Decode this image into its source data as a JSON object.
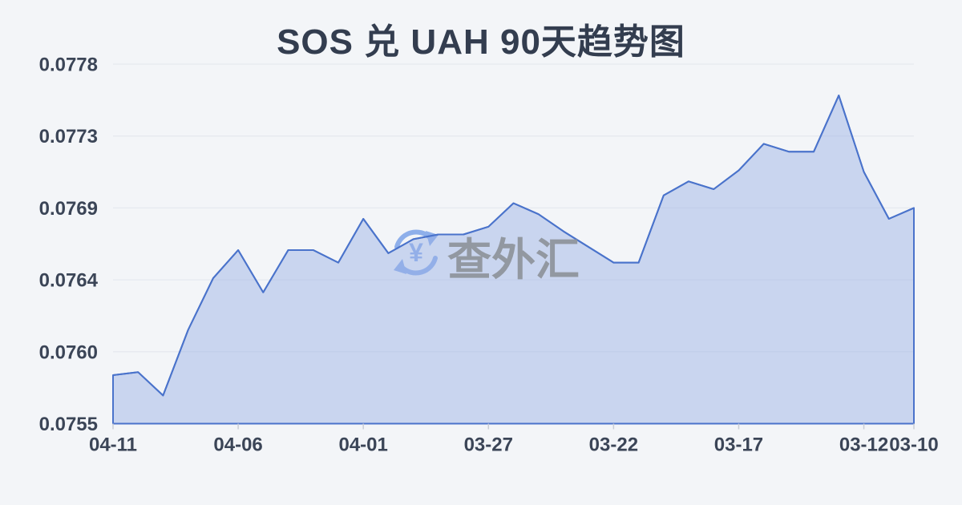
{
  "chart_data": {
    "type": "area",
    "title": "SOS 兑 UAH 90天趋势图",
    "xlabel": "",
    "ylabel": "",
    "x_reversed": true,
    "grid": true,
    "legend": false,
    "ylim": [
      0.0755,
      0.0778
    ],
    "y_tick_labels": [
      "0.0778",
      "0.0773",
      "0.0769",
      "0.0764",
      "0.0760",
      "0.0755"
    ],
    "x_tick_labels": [
      "04-11",
      "04-06",
      "04-01",
      "03-27",
      "03-22",
      "03-17",
      "03-12",
      "03-10"
    ],
    "x_tick_indices": [
      0,
      5,
      10,
      15,
      20,
      25,
      30,
      32
    ],
    "x": [
      "04-11",
      "04-10",
      "04-09",
      "04-08",
      "04-07",
      "04-06",
      "04-05",
      "04-04",
      "04-03",
      "04-02",
      "04-01",
      "03-31",
      "03-30",
      "03-29",
      "03-28",
      "03-27",
      "03-26",
      "03-25",
      "03-24",
      "03-23",
      "03-22",
      "03-21",
      "03-20",
      "03-19",
      "03-18",
      "03-17",
      "03-16",
      "03-15",
      "03-14",
      "03-13",
      "03-12",
      "03-11",
      "03-10"
    ],
    "values": [
      0.07581,
      0.07583,
      0.07568,
      0.0761,
      0.07643,
      0.07661,
      0.07634,
      0.07661,
      0.07661,
      0.07653,
      0.07681,
      0.07659,
      0.07668,
      0.07671,
      0.07671,
      0.07676,
      0.07691,
      0.07684,
      0.07673,
      0.07663,
      0.07653,
      0.07653,
      0.07696,
      0.07705,
      0.077,
      0.07712,
      0.07729,
      0.07724,
      0.07724,
      0.0776,
      0.07711,
      0.07681,
      0.07688
    ]
  },
  "watermark": {
    "text": "查外汇",
    "icon": "currency-exchange-icon",
    "currency_symbol": "¥"
  },
  "colors": {
    "background": "#f3f5f8",
    "title": "#333d4f",
    "axis_label": "#3b4557",
    "gridline": "#e6e9ef",
    "tick": "#c9cdd6",
    "line": "#4a73cb",
    "area_fill": "#9ab1e5",
    "watermark_text": "#8e939b",
    "watermark_icon": "#7da3e8"
  }
}
